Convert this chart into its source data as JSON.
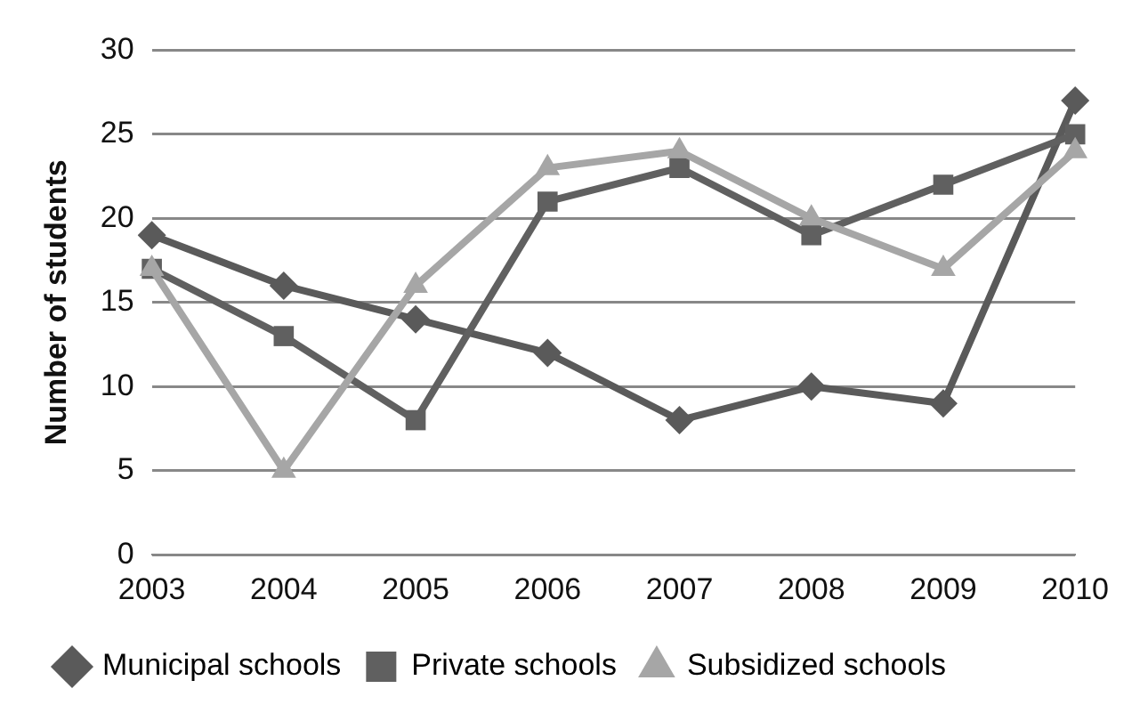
{
  "chart_data": {
    "type": "line",
    "ylabel": "Number of students",
    "categories": [
      "2003",
      "2004",
      "2005",
      "2006",
      "2007",
      "2008",
      "2009",
      "2010"
    ],
    "series": [
      {
        "name": "Municipal schools",
        "color": "#5a5a5a",
        "marker": "diamond",
        "values": [
          19,
          16,
          14,
          12,
          8,
          10,
          9,
          27
        ]
      },
      {
        "name": "Private schools",
        "color": "#606060",
        "marker": "square",
        "values": [
          17,
          13,
          8,
          21,
          23,
          19,
          22,
          25
        ]
      },
      {
        "name": "Subsidized schools",
        "color": "#a6a6a6",
        "marker": "triangle",
        "values": [
          17,
          5,
          16,
          23,
          24,
          20,
          17,
          24
        ]
      }
    ],
    "ylim": [
      0,
      30
    ],
    "yticks": [
      0,
      5,
      10,
      15,
      20,
      25,
      30
    ],
    "grid": "y",
    "legend": "bottom",
    "line_style": "solid"
  }
}
